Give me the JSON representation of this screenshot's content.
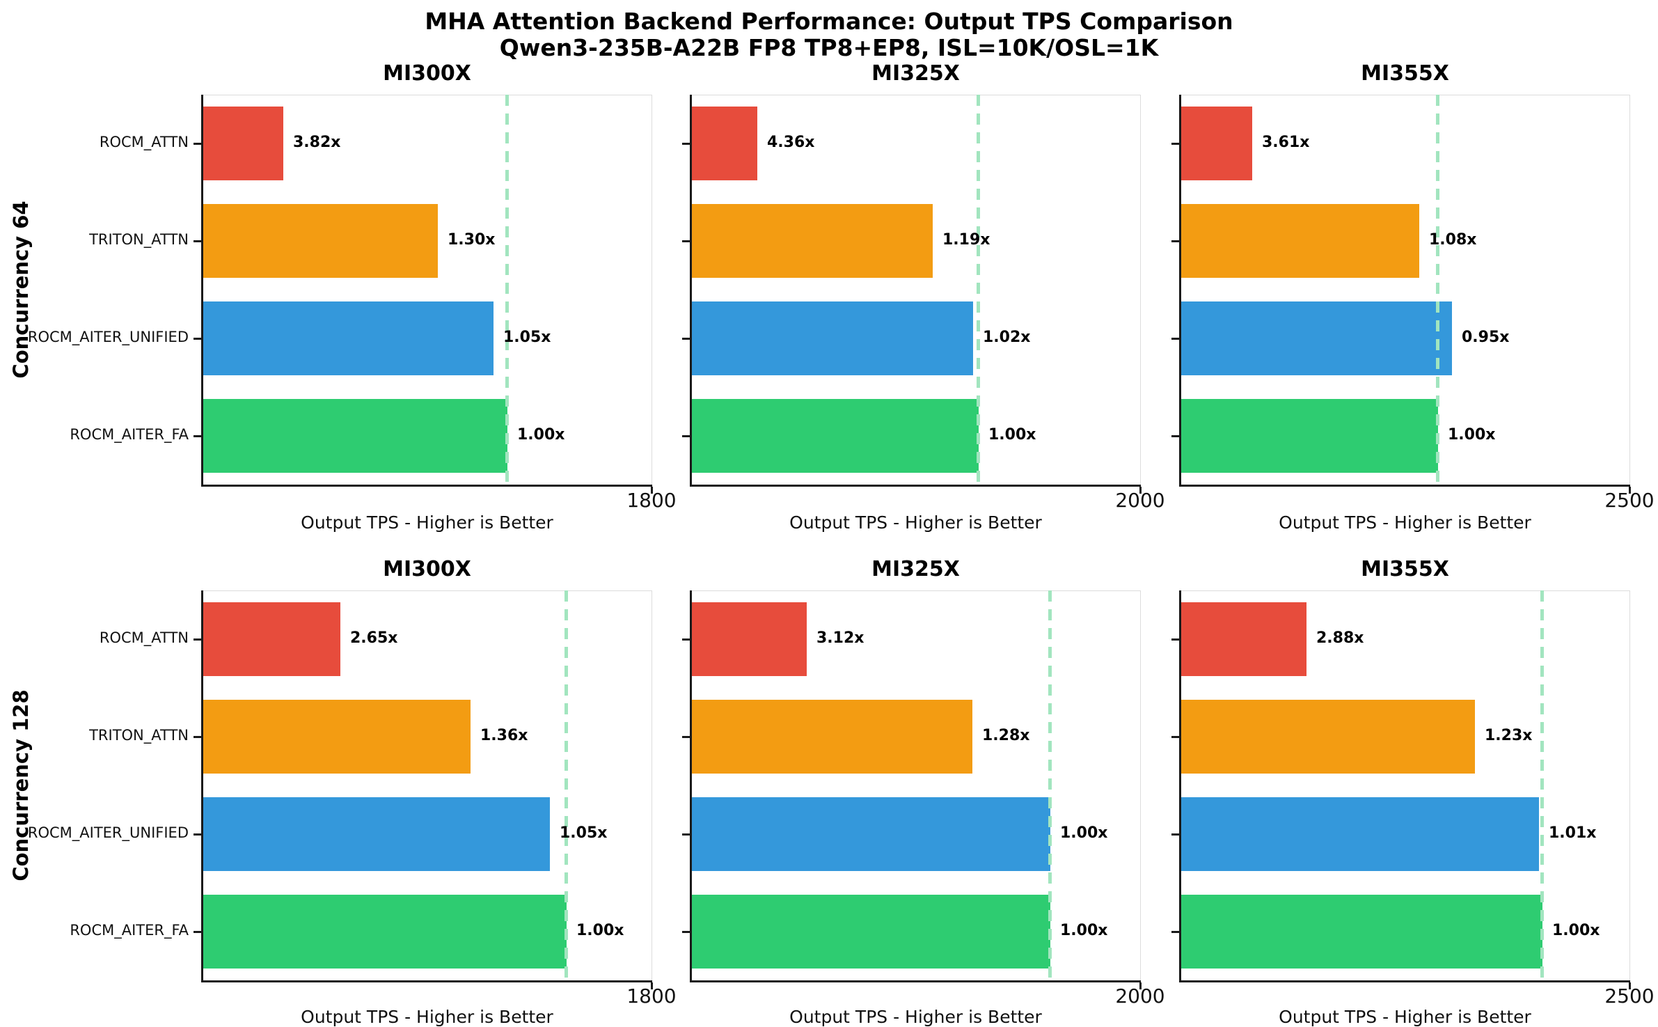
{
  "title": {
    "line1": "MHA Attention Backend Performance: Output TPS Comparison",
    "line2": "Qwen3-235B-A22B FP8 TP8+EP8, ISL=10K/OSL=1K"
  },
  "colors": {
    "ROCM_ATTN": "#e74c3c",
    "TRITON_ATTN": "#f39c12",
    "ROCM_AITER_UNIFIED": "#3498db",
    "ROCM_AITER_FA": "#2ecc71",
    "reference_line": "#a2e5bf",
    "spine_dark": "#1a1a1a",
    "spine_light": "#dcdcdc",
    "text": "#000000"
  },
  "chart_data": {
    "type": "bar",
    "orientation": "horizontal",
    "suptitle": [
      "MHA Attention Backend Performance: Output TPS Comparison",
      "Qwen3-235B-A22B FP8 TP8+EP8, ISL=10K/OSL=1K"
    ],
    "grid": {
      "rows": 2,
      "cols": 3
    },
    "categories_top_to_bottom": [
      "ROCM_ATTN",
      "TRITON_ATTN",
      "ROCM_AITER_UNIFIED",
      "ROCM_AITER_FA"
    ],
    "xlabel": "Output TPS - Higher is Better",
    "legend": "none",
    "rows": [
      {
        "row_label": "Concurrency 64",
        "subplots": [
          {
            "title": "MI300X",
            "xlim": [
              0,
              1800
            ],
            "xtick_labels": [
              "1800"
            ],
            "xlabel": "Output TPS - Higher is Better",
            "reference_line_x": 1220,
            "bars": [
              {
                "backend": "ROCM_ATTN",
                "tps_est": 320,
                "speedup_label": "3.82x"
              },
              {
                "backend": "TRITON_ATTN",
                "tps_est": 940,
                "speedup_label": "1.30x"
              },
              {
                "backend": "ROCM_AITER_UNIFIED",
                "tps_est": 1165,
                "speedup_label": "1.05x"
              },
              {
                "backend": "ROCM_AITER_FA",
                "tps_est": 1220,
                "speedup_label": "1.00x"
              }
            ]
          },
          {
            "title": "MI325X",
            "xlim": [
              0,
              2000
            ],
            "xtick_labels": [
              "2000"
            ],
            "xlabel": "Output TPS - Higher is Better",
            "reference_line_x": 1277,
            "bars": [
              {
                "backend": "ROCM_ATTN",
                "tps_est": 293,
                "speedup_label": "4.36x"
              },
              {
                "backend": "TRITON_ATTN",
                "tps_est": 1073,
                "speedup_label": "1.19x"
              },
              {
                "backend": "ROCM_AITER_UNIFIED",
                "tps_est": 1252,
                "speedup_label": "1.02x"
              },
              {
                "backend": "ROCM_AITER_FA",
                "tps_est": 1277,
                "speedup_label": "1.00x"
              }
            ]
          },
          {
            "title": "MI355X",
            "xlim": [
              0,
              2500
            ],
            "xtick_labels": [
              "2500"
            ],
            "xlabel": "Output TPS - Higher is Better",
            "reference_line_x": 1432,
            "bars": [
              {
                "backend": "ROCM_ATTN",
                "tps_est": 397,
                "speedup_label": "3.61x"
              },
              {
                "backend": "TRITON_ATTN",
                "tps_est": 1326,
                "speedup_label": "1.08x"
              },
              {
                "backend": "ROCM_AITER_UNIFIED",
                "tps_est": 1507,
                "speedup_label": "0.95x"
              },
              {
                "backend": "ROCM_AITER_FA",
                "tps_est": 1432,
                "speedup_label": "1.00x"
              }
            ]
          }
        ]
      },
      {
        "row_label": "Concurrency 128",
        "subplots": [
          {
            "title": "MI300X",
            "xlim": [
              0,
              1800
            ],
            "xtick_labels": [
              "1800"
            ],
            "xlabel": "Output TPS - Higher is Better",
            "reference_line_x": 1458,
            "bars": [
              {
                "backend": "ROCM_ATTN",
                "tps_est": 550,
                "speedup_label": "2.65x"
              },
              {
                "backend": "TRITON_ATTN",
                "tps_est": 1072,
                "speedup_label": "1.36x"
              },
              {
                "backend": "ROCM_AITER_UNIFIED",
                "tps_est": 1390,
                "speedup_label": "1.05x"
              },
              {
                "backend": "ROCM_AITER_FA",
                "tps_est": 1458,
                "speedup_label": "1.00x"
              }
            ]
          },
          {
            "title": "MI325X",
            "xlim": [
              0,
              2000
            ],
            "xtick_labels": [
              "2000"
            ],
            "xlabel": "Output TPS - Higher is Better",
            "reference_line_x": 1598,
            "bars": [
              {
                "backend": "ROCM_ATTN",
                "tps_est": 512,
                "speedup_label": "3.12x"
              },
              {
                "backend": "TRITON_ATTN",
                "tps_est": 1249,
                "speedup_label": "1.28x"
              },
              {
                "backend": "ROCM_AITER_UNIFIED",
                "tps_est": 1598,
                "speedup_label": "1.00x"
              },
              {
                "backend": "ROCM_AITER_FA",
                "tps_est": 1598,
                "speedup_label": "1.00x"
              }
            ]
          },
          {
            "title": "MI355X",
            "xlim": [
              0,
              2500
            ],
            "xtick_labels": [
              "2500"
            ],
            "xlabel": "Output TPS - Higher is Better",
            "reference_line_x": 2013,
            "bars": [
              {
                "backend": "ROCM_ATTN",
                "tps_est": 699,
                "speedup_label": "2.88x"
              },
              {
                "backend": "TRITON_ATTN",
                "tps_est": 1637,
                "speedup_label": "1.23x"
              },
              {
                "backend": "ROCM_AITER_UNIFIED",
                "tps_est": 1993,
                "speedup_label": "1.01x"
              },
              {
                "backend": "ROCM_AITER_FA",
                "tps_est": 2013,
                "speedup_label": "1.00x"
              }
            ]
          }
        ]
      }
    ]
  }
}
